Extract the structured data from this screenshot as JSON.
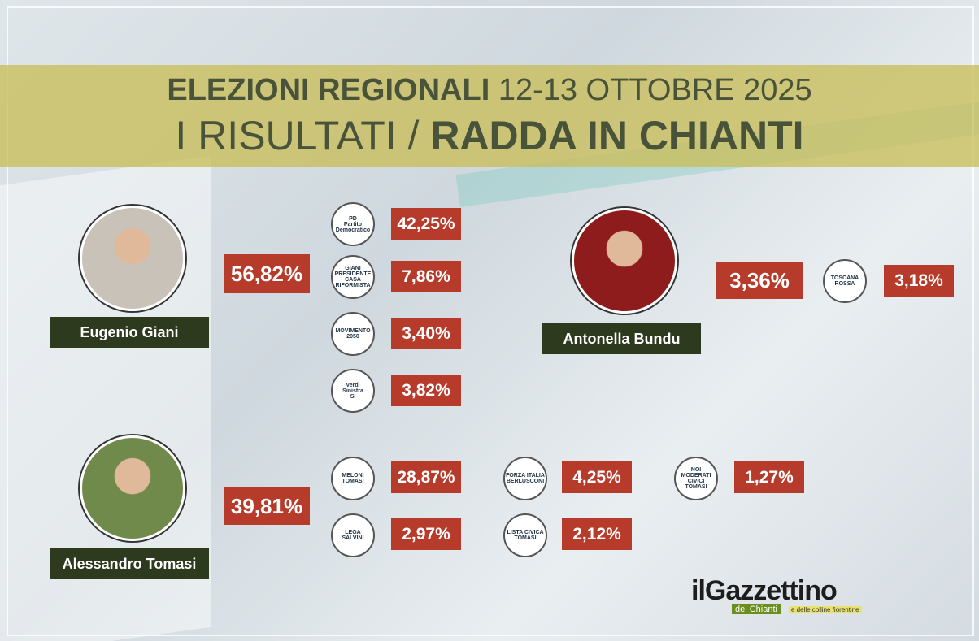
{
  "header": {
    "line1_bold": "ELEZIONI REGIONALI",
    "line1_regular": "12-13 OTTOBRE 2025",
    "line2_regular": "I RISULTATI /",
    "line2_bold": "RADDA IN CHIANTI"
  },
  "candidates": [
    {
      "name": "Eugenio Giani",
      "total": "56,82%",
      "lists": [
        {
          "logo": [
            "PD",
            "Partito Democratico"
          ],
          "pct": "42,25%"
        },
        {
          "logo": [
            "GIANI",
            "PRESIDENTE",
            "CASA RIFORMISTA"
          ],
          "pct": "7,86%"
        },
        {
          "logo": [
            "MOVIMENTO",
            "2050"
          ],
          "pct": "3,40%"
        },
        {
          "logo": [
            "Verdi",
            "Sinistra",
            "SI"
          ],
          "pct": "3,82%"
        }
      ]
    },
    {
      "name": "Antonella Bundu",
      "total": "3,36%",
      "lists": [
        {
          "logo": [
            "TOSCANA",
            "ROSSA"
          ],
          "pct": "3,18%"
        }
      ]
    },
    {
      "name": "Alessandro Tomasi",
      "total": "39,81%",
      "lists": [
        {
          "logo": [
            "MELONI",
            "TOMASI"
          ],
          "pct": "28,87%"
        },
        {
          "logo": [
            "LEGA",
            "SALVINI"
          ],
          "pct": "2,97%"
        },
        {
          "logo": [
            "FORZA ITALIA",
            "BERLUSCONI"
          ],
          "pct": "4,25%"
        },
        {
          "logo": [
            "LISTA CIVICA",
            "TOMASI"
          ],
          "pct": "2,12%"
        },
        {
          "logo": [
            "NOI",
            "MODERATI",
            "CIVICI",
            "TOMASI"
          ],
          "pct": "1,27%"
        }
      ]
    }
  ],
  "brand": {
    "name": "ilGazzettino",
    "sub": "del Chianti",
    "tagline": "e delle colline fiorentine"
  }
}
